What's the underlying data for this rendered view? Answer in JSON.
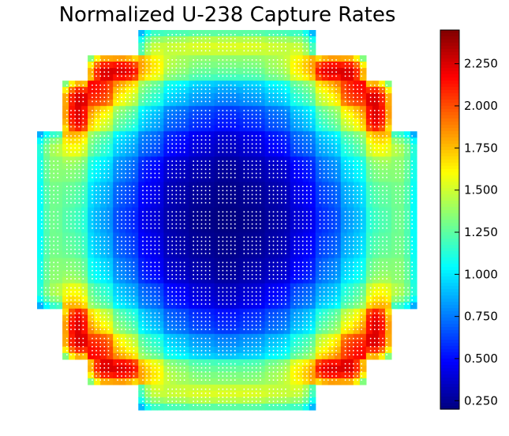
{
  "chart_data": {
    "type": "heatmap",
    "title": "Normalized U-238 Capture Rates",
    "xlabel": "",
    "ylabel": "",
    "colormap": "jet",
    "value_range": [
      0.2,
      2.45
    ],
    "colorbar": {
      "ticks": [
        0.25,
        0.5,
        0.75,
        1.0,
        1.25,
        1.5,
        1.75,
        2.0,
        2.25
      ],
      "tick_labels": [
        "0.250",
        "0.500",
        "0.750",
        "1.000",
        "1.250",
        "1.500",
        "1.750",
        "2.000",
        "2.250"
      ]
    },
    "grid": false,
    "assembly_grid": {
      "rows": 15,
      "cols": 15,
      "row_spans": [
        [
          4,
          10
        ],
        [
          2,
          12
        ],
        [
          1,
          13
        ],
        [
          1,
          13
        ],
        [
          0,
          14
        ],
        [
          0,
          14
        ],
        [
          0,
          14
        ],
        [
          0,
          14
        ],
        [
          0,
          14
        ],
        [
          0,
          14
        ],
        [
          0,
          14
        ],
        [
          1,
          13
        ],
        [
          1,
          13
        ],
        [
          2,
          12
        ],
        [
          4,
          10
        ]
      ],
      "assembly_values": [
        [
          null,
          null,
          null,
          null,
          1.45,
          1.5,
          1.55,
          1.55,
          1.55,
          1.5,
          1.45,
          null,
          null,
          null,
          null
        ],
        [
          null,
          null,
          2.25,
          2.3,
          1.7,
          1.4,
          1.3,
          1.3,
          1.3,
          1.4,
          1.7,
          2.3,
          2.25,
          null,
          null
        ],
        [
          null,
          2.25,
          2.1,
          1.6,
          1.2,
          0.95,
          0.85,
          0.8,
          0.85,
          0.95,
          1.2,
          1.6,
          2.1,
          2.25,
          null
        ],
        [
          null,
          2.3,
          1.6,
          1.25,
          0.9,
          0.7,
          0.6,
          0.55,
          0.6,
          0.7,
          0.9,
          1.25,
          1.6,
          2.3,
          null
        ],
        [
          1.4,
          1.65,
          1.2,
          0.9,
          0.7,
          0.5,
          0.4,
          0.35,
          0.4,
          0.5,
          0.7,
          0.9,
          1.2,
          1.65,
          1.4
        ],
        [
          1.35,
          1.35,
          1.0,
          0.75,
          0.5,
          0.35,
          0.3,
          0.25,
          0.3,
          0.35,
          0.5,
          0.75,
          1.0,
          1.35,
          1.35
        ],
        [
          1.3,
          1.25,
          0.9,
          0.65,
          0.45,
          0.3,
          0.25,
          0.22,
          0.25,
          0.3,
          0.45,
          0.65,
          0.9,
          1.25,
          1.3
        ],
        [
          1.3,
          1.2,
          0.85,
          0.6,
          0.4,
          0.28,
          0.22,
          0.2,
          0.22,
          0.28,
          0.4,
          0.6,
          0.85,
          1.2,
          1.3
        ],
        [
          1.3,
          1.25,
          0.9,
          0.65,
          0.45,
          0.3,
          0.25,
          0.22,
          0.25,
          0.3,
          0.45,
          0.65,
          0.9,
          1.25,
          1.3
        ],
        [
          1.35,
          1.35,
          1.0,
          0.75,
          0.5,
          0.35,
          0.3,
          0.25,
          0.3,
          0.35,
          0.5,
          0.75,
          1.0,
          1.35,
          1.35
        ],
        [
          1.4,
          1.65,
          1.2,
          0.9,
          0.7,
          0.5,
          0.4,
          0.35,
          0.4,
          0.5,
          0.7,
          0.9,
          1.2,
          1.65,
          1.4
        ],
        [
          null,
          2.3,
          1.6,
          1.25,
          0.9,
          0.7,
          0.6,
          0.55,
          0.6,
          0.7,
          0.9,
          1.25,
          1.6,
          2.3,
          null
        ],
        [
          null,
          2.25,
          2.1,
          1.6,
          1.2,
          0.95,
          0.85,
          0.8,
          0.85,
          0.95,
          1.2,
          1.6,
          2.1,
          2.25,
          null
        ],
        [
          null,
          null,
          2.25,
          2.3,
          1.7,
          1.4,
          1.3,
          1.3,
          1.3,
          1.4,
          1.7,
          2.3,
          2.25,
          null,
          null
        ],
        [
          null,
          null,
          null,
          null,
          1.45,
          1.5,
          1.55,
          1.55,
          1.55,
          1.5,
          1.45,
          null,
          null,
          null,
          null
        ]
      ]
    }
  }
}
